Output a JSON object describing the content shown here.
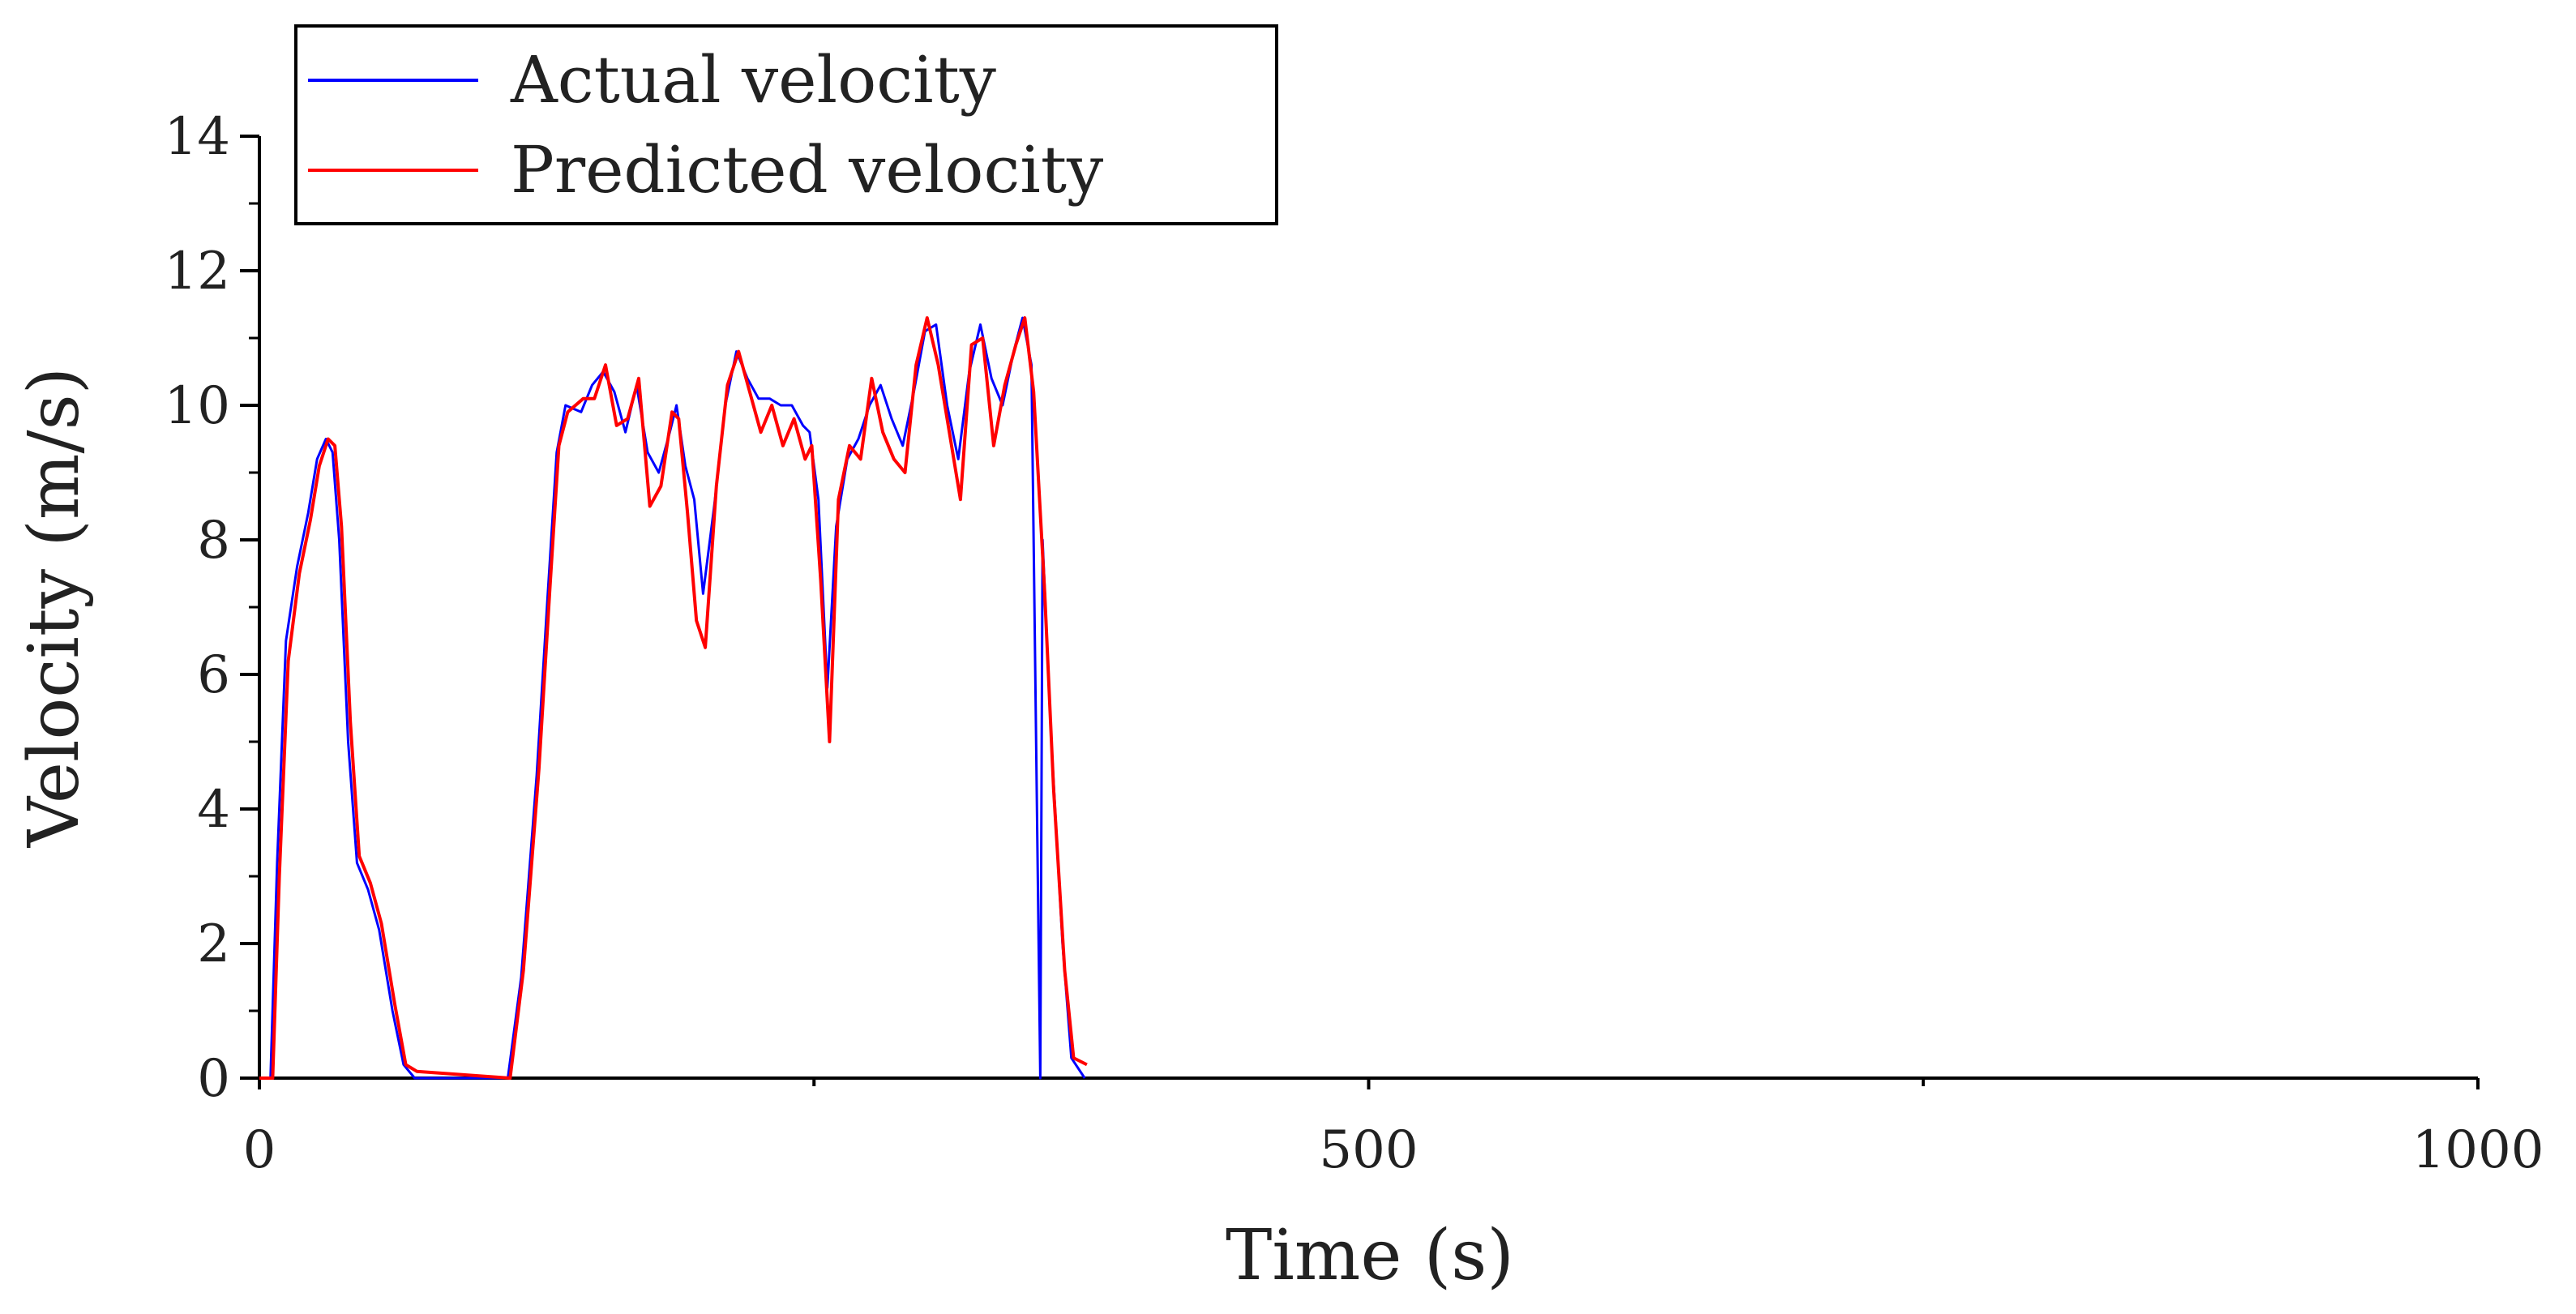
{
  "chart_data": {
    "type": "line",
    "title": "",
    "xlabel": "Time (s)",
    "ylabel": "Velocity (m/s)",
    "xlim": [
      0,
      1000
    ],
    "ylim": [
      0,
      14
    ],
    "x_ticks": [
      0,
      500,
      1000
    ],
    "x_tick_labels": [
      "0",
      "500",
      "1000"
    ],
    "y_ticks": [
      0,
      2,
      4,
      6,
      8,
      10,
      12,
      14
    ],
    "y_tick_labels": [
      "0",
      "2",
      "4",
      "6",
      "8",
      "10",
      "12",
      "14"
    ],
    "grid": false,
    "legend_position": "top-left",
    "series": [
      {
        "name": "Actual velocity",
        "color": "#0000ff",
        "points": [
          [
            0,
            0
          ],
          [
            5,
            0
          ],
          [
            8,
            3.2
          ],
          [
            12,
            6.5
          ],
          [
            17,
            7.6
          ],
          [
            22,
            8.4
          ],
          [
            26,
            9.2
          ],
          [
            30,
            9.5
          ],
          [
            33,
            9.3
          ],
          [
            36,
            8.0
          ],
          [
            40,
            5.0
          ],
          [
            44,
            3.2
          ],
          [
            49,
            2.8
          ],
          [
            54,
            2.2
          ],
          [
            60,
            1.0
          ],
          [
            65,
            0.2
          ],
          [
            70,
            0
          ],
          [
            112,
            0
          ],
          [
            118,
            1.5
          ],
          [
            125,
            4.5
          ],
          [
            130,
            7.2
          ],
          [
            134,
            9.3
          ],
          [
            138,
            10.0
          ],
          [
            145,
            9.9
          ],
          [
            150,
            10.3
          ],
          [
            155,
            10.5
          ],
          [
            160,
            10.2
          ],
          [
            165,
            9.6
          ],
          [
            170,
            10.3
          ],
          [
            175,
            9.3
          ],
          [
            180,
            9.0
          ],
          [
            185,
            9.6
          ],
          [
            188,
            10.0
          ],
          [
            192,
            9.1
          ],
          [
            196,
            8.6
          ],
          [
            200,
            7.2
          ],
          [
            205,
            8.5
          ],
          [
            210,
            10.0
          ],
          [
            215,
            10.8
          ],
          [
            220,
            10.4
          ],
          [
            225,
            10.1
          ],
          [
            230,
            10.1
          ],
          [
            235,
            10.0
          ],
          [
            240,
            10.0
          ],
          [
            245,
            9.7
          ],
          [
            248,
            9.6
          ],
          [
            252,
            8.6
          ],
          [
            256,
            5.8
          ],
          [
            260,
            8.2
          ],
          [
            265,
            9.2
          ],
          [
            270,
            9.5
          ],
          [
            275,
            10.0
          ],
          [
            280,
            10.3
          ],
          [
            285,
            9.8
          ],
          [
            290,
            9.4
          ],
          [
            295,
            10.2
          ],
          [
            300,
            11.1
          ],
          [
            305,
            11.2
          ],
          [
            310,
            10.0
          ],
          [
            315,
            9.2
          ],
          [
            320,
            10.5
          ],
          [
            325,
            11.2
          ],
          [
            330,
            10.4
          ],
          [
            335,
            10.0
          ],
          [
            340,
            10.8
          ],
          [
            344,
            11.3
          ],
          [
            348,
            10.6
          ],
          [
            353,
            8.0
          ],
          [
            357,
            5.0
          ],
          [
            362,
            2.0
          ],
          [
            366,
            0.3
          ],
          [
            372,
            0
          ],
          [
            352,
            0
          ]
        ]
      },
      {
        "name": "Predicted velocity",
        "color": "#ff0000",
        "points": [
          [
            0,
            0
          ],
          [
            6,
            0
          ],
          [
            9,
            3.0
          ],
          [
            13,
            6.2
          ],
          [
            18,
            7.5
          ],
          [
            23,
            8.3
          ],
          [
            27,
            9.1
          ],
          [
            31,
            9.5
          ],
          [
            34,
            9.4
          ],
          [
            37,
            8.2
          ],
          [
            41,
            5.3
          ],
          [
            45,
            3.3
          ],
          [
            50,
            2.9
          ],
          [
            55,
            2.3
          ],
          [
            61,
            1.1
          ],
          [
            66,
            0.2
          ],
          [
            71,
            0.1
          ],
          [
            113,
            0
          ],
          [
            119,
            1.6
          ],
          [
            126,
            4.6
          ],
          [
            131,
            7.3
          ],
          [
            135,
            9.4
          ],
          [
            139,
            9.9
          ],
          [
            146,
            10.1
          ],
          [
            151,
            10.1
          ],
          [
            156,
            10.6
          ],
          [
            161,
            9.7
          ],
          [
            166,
            9.8
          ],
          [
            171,
            10.4
          ],
          [
            176,
            8.5
          ],
          [
            181,
            8.8
          ],
          [
            186,
            9.9
          ],
          [
            189,
            9.8
          ],
          [
            193,
            8.4
          ],
          [
            197,
            6.8
          ],
          [
            201,
            6.4
          ],
          [
            206,
            8.8
          ],
          [
            211,
            10.3
          ],
          [
            216,
            10.8
          ],
          [
            221,
            10.2
          ],
          [
            226,
            9.6
          ],
          [
            231,
            10.0
          ],
          [
            236,
            9.4
          ],
          [
            241,
            9.8
          ],
          [
            246,
            9.2
          ],
          [
            249,
            9.4
          ],
          [
            253,
            7.4
          ],
          [
            257,
            5.0
          ],
          [
            261,
            8.6
          ],
          [
            266,
            9.4
          ],
          [
            271,
            9.2
          ],
          [
            276,
            10.4
          ],
          [
            281,
            9.6
          ],
          [
            286,
            9.2
          ],
          [
            291,
            9.0
          ],
          [
            296,
            10.6
          ],
          [
            301,
            11.3
          ],
          [
            306,
            10.6
          ],
          [
            311,
            9.6
          ],
          [
            316,
            8.6
          ],
          [
            321,
            10.9
          ],
          [
            326,
            11.0
          ],
          [
            331,
            9.4
          ],
          [
            336,
            10.3
          ],
          [
            341,
            10.9
          ],
          [
            345,
            11.3
          ],
          [
            349,
            10.2
          ],
          [
            354,
            7.2
          ],
          [
            358,
            4.3
          ],
          [
            363,
            1.6
          ],
          [
            367,
            0.3
          ],
          [
            373,
            0.2
          ]
        ]
      }
    ]
  }
}
